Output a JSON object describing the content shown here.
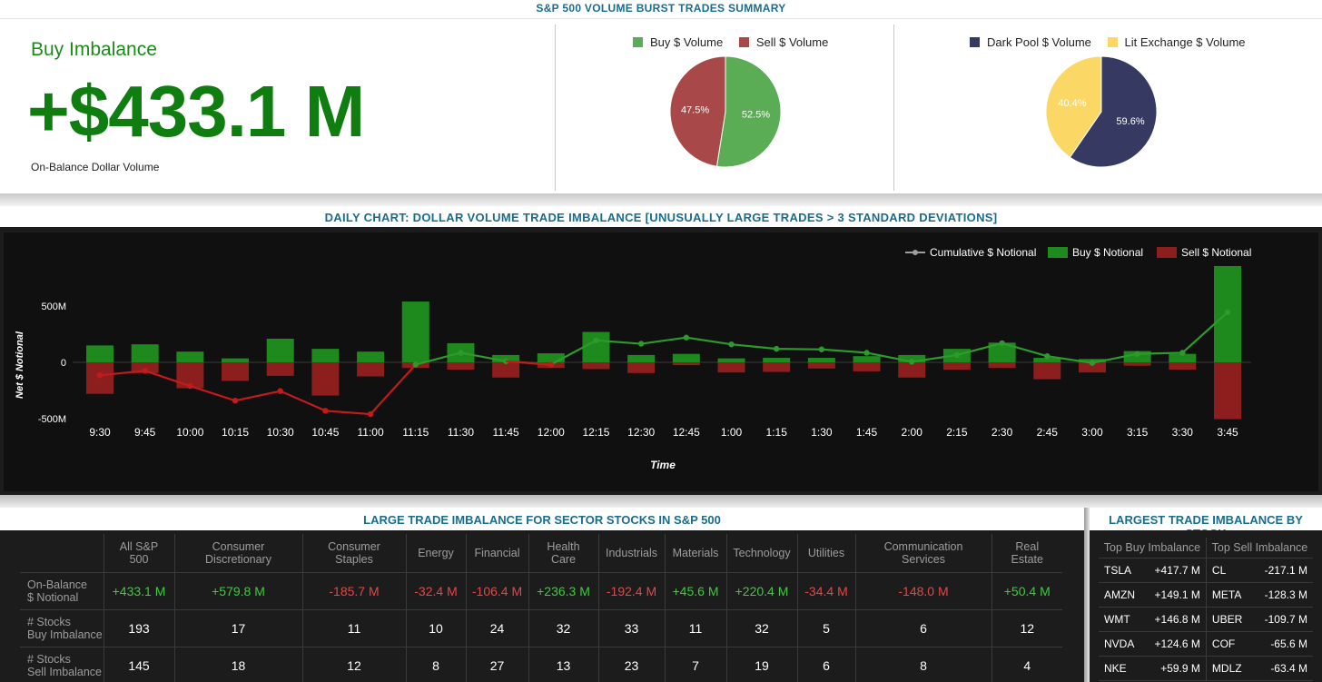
{
  "summary": {
    "title": "S&P 500 VOLUME BURST TRADES SUMMARY",
    "imbalance_label": "Buy Imbalance",
    "imbalance_value": "+$433.1 M",
    "imbalance_sub": "On-Balance Dollar Volume"
  },
  "colors": {
    "buy": "#5aac55",
    "sell": "#a84848",
    "dark_pool": "#363a63",
    "lit": "#fbd866",
    "chart_buy": "#1e8a1e",
    "chart_sell": "#8c1e1e",
    "cum_after": "#2e9a2e",
    "cum_before": "#c21b1b",
    "title_blue": "#1a6c8f"
  },
  "chart_data": [
    {
      "type": "pie",
      "series_names": [
        "Buy $ Volume",
        "Sell $ Volume"
      ],
      "values": [
        52.5,
        47.5
      ],
      "labels": [
        "52.5%",
        "47.5%"
      ]
    },
    {
      "type": "pie",
      "series_names": [
        "Dark Pool $ Volume",
        "Lit Exchange $ Volume"
      ],
      "values": [
        59.6,
        40.4
      ],
      "labels": [
        "59.6%",
        "40.4%"
      ]
    },
    {
      "type": "bar",
      "title": "DAILY CHART: DOLLAR VOLUME TRADE IMBALANCE [UNUSUALLY LARGE TRADES > 3 STANDARD DEVIATIONS]",
      "xlabel": "Time",
      "ylabel": "Net $ Notional",
      "y_ticks": [
        {
          "value": 500,
          "label": "500M"
        },
        {
          "value": 0,
          "label": "0"
        },
        {
          "value": -500,
          "label": "-500M"
        }
      ],
      "ylim": [
        -520,
        860
      ],
      "categories": [
        "9:30",
        "9:45",
        "10:00",
        "10:15",
        "10:30",
        "10:45",
        "11:00",
        "11:15",
        "11:30",
        "11:45",
        "12:00",
        "12:15",
        "12:30",
        "12:45",
        "1:00",
        "1:15",
        "1:30",
        "1:45",
        "2:00",
        "2:15",
        "2:30",
        "2:45",
        "3:00",
        "3:15",
        "3:30",
        "3:45"
      ],
      "series": [
        {
          "name": "Buy $ Notional",
          "type": "bar",
          "values": [
            150,
            160,
            95,
            35,
            210,
            120,
            95,
            540,
            170,
            65,
            80,
            270,
            65,
            75,
            35,
            40,
            40,
            55,
            65,
            120,
            175,
            40,
            30,
            100,
            75,
            855
          ]
        },
        {
          "name": "Sell $ Notional",
          "type": "bar",
          "values": [
            -280,
            -95,
            -230,
            -165,
            -120,
            -295,
            -125,
            -50,
            -65,
            -135,
            -50,
            -60,
            -95,
            -25,
            -90,
            -85,
            -55,
            -80,
            -135,
            -65,
            -50,
            -150,
            -90,
            -30,
            -65,
            -505
          ]
        },
        {
          "name": "Cumulative $ Notional",
          "type": "line",
          "values": [
            -115,
            -75,
            -210,
            -340,
            -255,
            -430,
            -460,
            -20,
            85,
            10,
            -20,
            195,
            165,
            220,
            160,
            120,
            115,
            85,
            5,
            65,
            170,
            55,
            -5,
            75,
            85,
            445
          ]
        }
      ],
      "legend": "top-right"
    }
  ],
  "sector": {
    "title": "LARGE TRADE IMBALANCE FOR SECTOR STOCKS IN S&P 500",
    "headers": [
      {
        "l1": "All S&P",
        "l2": "500"
      },
      {
        "l1": "Consumer",
        "l2": "Discretionary"
      },
      {
        "l1": "Consumer",
        "l2": "Staples"
      },
      {
        "l1": "Energy",
        "l2": ""
      },
      {
        "l1": "Financial",
        "l2": ""
      },
      {
        "l1": "Health",
        "l2": "Care"
      },
      {
        "l1": "Industrials",
        "l2": ""
      },
      {
        "l1": "Materials",
        "l2": ""
      },
      {
        "l1": "Technology",
        "l2": ""
      },
      {
        "l1": "Utilities",
        "l2": ""
      },
      {
        "l1": "Communication",
        "l2": "Services"
      },
      {
        "l1": "Real",
        "l2": "Estate"
      }
    ],
    "rows": [
      {
        "label1": "On-Balance",
        "label2": "$ Notional",
        "cells": [
          "+433.1 M",
          "+579.8 M",
          "-185.7 M",
          "-32.4 M",
          "-106.4 M",
          "+236.3 M",
          "-192.4 M",
          "+45.6 M",
          "+220.4 M",
          "-34.4 M",
          "-148.0 M",
          "+50.4 M"
        ]
      },
      {
        "label1": "# Stocks",
        "label2": "Buy Imbalance",
        "cells": [
          "193",
          "17",
          "11",
          "10",
          "24",
          "32",
          "33",
          "11",
          "32",
          "5",
          "6",
          "12"
        ]
      },
      {
        "label1": "# Stocks",
        "label2": "Sell Imbalance",
        "cells": [
          "145",
          "18",
          "12",
          "8",
          "27",
          "13",
          "23",
          "7",
          "19",
          "6",
          "8",
          "4"
        ]
      }
    ]
  },
  "stocks": {
    "title": "LARGEST TRADE IMBALANCE BY STOCK",
    "buy_header": "Top Buy Imbalance",
    "sell_header": "Top Sell Imbalance",
    "rows": [
      {
        "buy_ticker": "TSLA",
        "buy_value": "+417.7 M",
        "sell_ticker": "CL",
        "sell_value": "-217.1 M"
      },
      {
        "buy_ticker": "AMZN",
        "buy_value": "+149.1 M",
        "sell_ticker": "META",
        "sell_value": "-128.3 M"
      },
      {
        "buy_ticker": "WMT",
        "buy_value": "+146.8 M",
        "sell_ticker": "UBER",
        "sell_value": "-109.7 M"
      },
      {
        "buy_ticker": "NVDA",
        "buy_value": "+124.6 M",
        "sell_ticker": "COF",
        "sell_value": "-65.6 M"
      },
      {
        "buy_ticker": "NKE",
        "buy_value": "+59.9 M",
        "sell_ticker": "MDLZ",
        "sell_value": "-63.4 M"
      }
    ]
  }
}
